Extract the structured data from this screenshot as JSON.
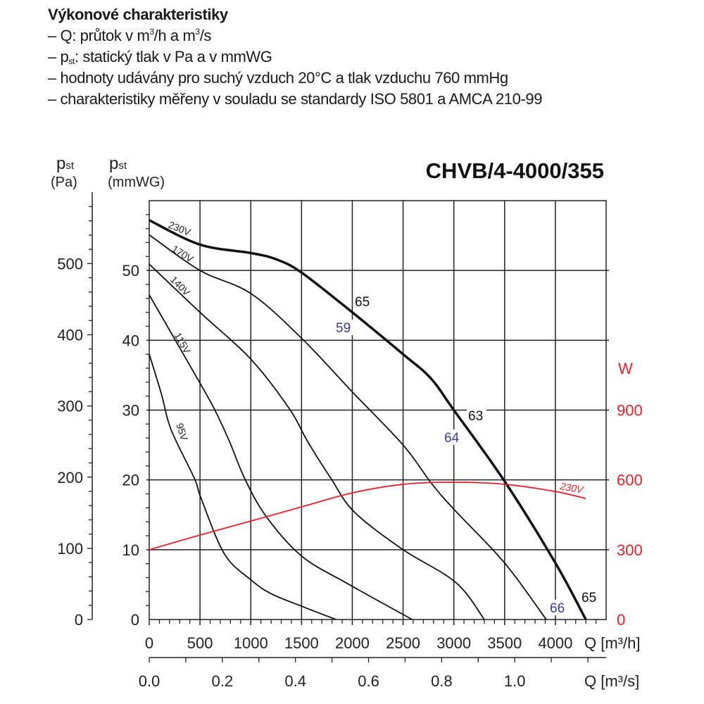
{
  "header": {
    "title": "Výkonové charakteristiky",
    "lines": [
      {
        "pre": "– Q: průtok v m",
        "sup1": "3",
        "mid": "/h a m",
        "sup2": "3",
        "post": "/s"
      },
      {
        "pre": "– p",
        "sub": "st",
        "post": ": statický tlak v Pa a v mmWG"
      },
      {
        "text": "– hodnoty udávány pro suchý vzduch 20°C a tlak vzduchu 760 mmHg"
      },
      {
        "text": "– charakteristiky měřeny v souladu se standardy ISO 5801 a AMCA 210-99"
      }
    ]
  },
  "chart_data": {
    "type": "line",
    "title": "CHVB/4-4000/355",
    "xlabel": "Q [m³/h]",
    "xlabel2": "Q [m³/s]",
    "ylabel_left_pa": {
      "main": "p",
      "sub": "st",
      "unit": "(Pa)"
    },
    "ylabel_left_mm": {
      "main": "p",
      "sub": "st",
      "unit": "(mmWG)"
    },
    "ylabel_right": "W",
    "xlim": [
      0,
      4500
    ],
    "ylim_mmwg": [
      0,
      60
    ],
    "grid": true,
    "x_ticks": [
      "0",
      "500",
      "1000",
      "1500",
      "2000",
      "2500",
      "3000",
      "3500",
      "4000"
    ],
    "x2_ticks": [
      "0.0",
      "0.2",
      "0.4",
      "0.6",
      "0.8",
      "1.0"
    ],
    "y_pa_ticks": [
      "0",
      "100",
      "200",
      "300",
      "400",
      "500"
    ],
    "y_mmwg_ticks": [
      "0",
      "10",
      "20",
      "30",
      "40",
      "50"
    ],
    "y_w_ticks": [
      "0",
      "300",
      "600",
      "900"
    ],
    "series": [
      {
        "name": "230V",
        "axis": "mmWG",
        "color": "#111111",
        "bold": true,
        "x": [
          0,
          500,
          1000,
          1250,
          1500,
          2000,
          2500,
          2770,
          3000,
          3500,
          4000,
          4300
        ],
        "y": [
          57.2,
          53.7,
          52.5,
          51.6,
          49.7,
          44,
          38,
          34.6,
          30,
          19.8,
          8.1,
          0
        ]
      },
      {
        "name": "170V",
        "axis": "mmWG",
        "color": "#111111",
        "x": [
          0,
          500,
          1000,
          1500,
          2000,
          2500,
          2780,
          3000,
          3500,
          3910
        ],
        "y": [
          55.1,
          50,
          46.7,
          40.3,
          32.6,
          25,
          19.5,
          15.8,
          8.1,
          0
        ]
      },
      {
        "name": "140V",
        "axis": "mmWG",
        "color": "#111111",
        "x": [
          0,
          500,
          1000,
          1380,
          1560,
          1790,
          2020,
          2490,
          3020,
          3300
        ],
        "y": [
          50.9,
          44,
          37.3,
          30.2,
          25.5,
          20.2,
          15.4,
          10.1,
          5.3,
          0
        ]
      },
      {
        "name": "115V",
        "axis": "mmWG",
        "color": "#111111",
        "x": [
          0,
          510,
          650,
          790,
          940,
          1150,
          1500,
          1970,
          2590
        ],
        "y": [
          46.5,
          33.6,
          29.9,
          25.5,
          20.2,
          14.8,
          9.1,
          5,
          0
        ]
      },
      {
        "name": "95V",
        "axis": "mmWG",
        "color": "#111111",
        "x": [
          0,
          120,
          215,
          445,
          510,
          740,
          1000,
          1200,
          1520,
          1840
        ],
        "y": [
          38,
          32.3,
          27.2,
          20.2,
          17.4,
          9.4,
          5.7,
          3.7,
          1.8,
          0
        ]
      },
      {
        "name": "230V",
        "axis": "W",
        "color": "#e8202a",
        "x": [
          0,
          500,
          1000,
          1500,
          2000,
          2500,
          3000,
          3500,
          4000,
          4300
        ],
        "y": [
          300,
          363,
          423,
          484,
          544,
          581,
          590,
          581,
          550,
          520
        ]
      }
    ],
    "annotations": [
      {
        "text": "65",
        "color": "#111111"
      },
      {
        "text": "59",
        "color": "#3a3a9a"
      },
      {
        "text": "63",
        "color": "#111111"
      },
      {
        "text": "64",
        "color": "#3a3a9a"
      },
      {
        "text": "66",
        "color": "#3a3a9a"
      },
      {
        "text": "65",
        "color": "#111111"
      }
    ],
    "accent_color": "#e8202a"
  }
}
